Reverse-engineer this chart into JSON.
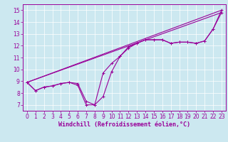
{
  "xlabel": "Windchill (Refroidissement éolien,°C)",
  "bg_color": "#cce8f0",
  "line_color": "#990099",
  "xlim": [
    -0.5,
    23.5
  ],
  "ylim": [
    6.5,
    15.5
  ],
  "xticks": [
    0,
    1,
    2,
    3,
    4,
    5,
    6,
    7,
    8,
    9,
    10,
    11,
    12,
    13,
    14,
    15,
    16,
    17,
    18,
    19,
    20,
    21,
    22,
    23
  ],
  "yticks": [
    7,
    8,
    9,
    10,
    11,
    12,
    13,
    14,
    15
  ],
  "curve1_x": [
    0,
    1,
    2,
    3,
    4,
    5,
    6,
    7,
    8,
    9,
    10,
    11,
    12,
    13,
    14,
    15,
    16,
    17,
    18,
    19,
    20,
    21,
    22,
    23
  ],
  "curve1_y": [
    8.9,
    8.2,
    8.5,
    8.6,
    8.8,
    8.9,
    8.8,
    7.3,
    7.0,
    9.7,
    10.5,
    11.1,
    11.8,
    12.2,
    12.5,
    12.5,
    12.5,
    12.2,
    12.3,
    12.3,
    12.2,
    12.4,
    13.4,
    15.0
  ],
  "curve2_x": [
    0,
    1,
    2,
    3,
    4,
    5,
    6,
    7,
    8,
    9,
    10,
    11,
    12,
    13,
    14,
    15,
    16,
    17,
    18,
    19,
    20,
    21,
    22,
    23
  ],
  "curve2_y": [
    8.9,
    8.2,
    8.5,
    8.6,
    8.8,
    8.9,
    8.65,
    7.0,
    7.0,
    7.7,
    9.8,
    11.1,
    11.9,
    12.2,
    12.5,
    12.5,
    12.5,
    12.2,
    12.3,
    12.3,
    12.2,
    12.4,
    13.4,
    14.8
  ],
  "line1_x": [
    0,
    23
  ],
  "line1_y": [
    8.9,
    15.0
  ],
  "line2_x": [
    0,
    23
  ],
  "line2_y": [
    8.9,
    14.8
  ],
  "grid_color": "#ffffff",
  "xlabel_fontsize": 6,
  "tick_fontsize": 5.5
}
